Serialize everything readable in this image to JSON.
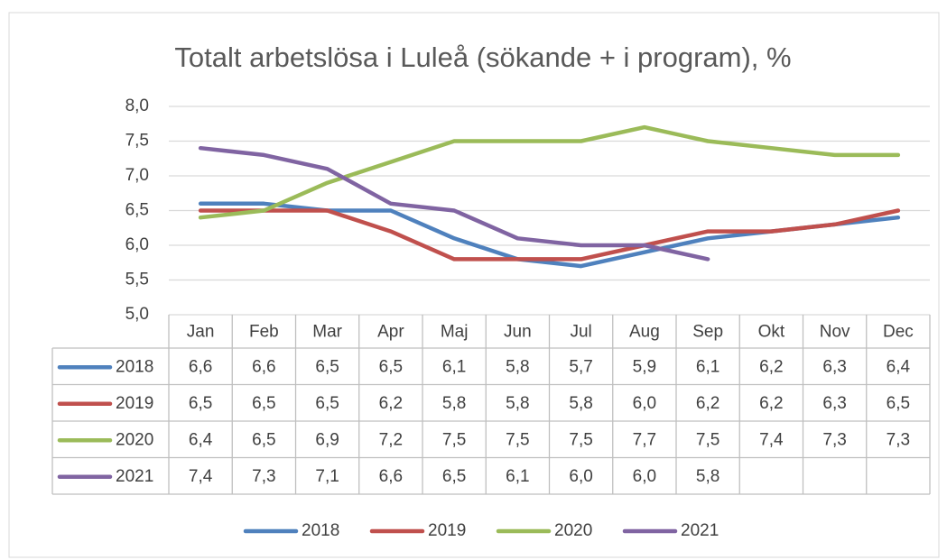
{
  "chart_data": {
    "type": "line",
    "title": "Totalt arbetslösa i Luleå (sökande + i program), %",
    "categories": [
      "Jan",
      "Feb",
      "Mar",
      "Apr",
      "Maj",
      "Jun",
      "Jul",
      "Aug",
      "Sep",
      "Okt",
      "Nov",
      "Dec"
    ],
    "series": [
      {
        "name": "2018",
        "color": "#4f81bd",
        "values": [
          6.6,
          6.6,
          6.5,
          6.5,
          6.1,
          5.8,
          5.7,
          5.9,
          6.1,
          6.2,
          6.3,
          6.4
        ],
        "value_labels": [
          "6,6",
          "6,6",
          "6,5",
          "6,5",
          "6,1",
          "5,8",
          "5,7",
          "5,9",
          "6,1",
          "6,2",
          "6,3",
          "6,4"
        ]
      },
      {
        "name": "2019",
        "color": "#c0504d",
        "values": [
          6.5,
          6.5,
          6.5,
          6.2,
          5.8,
          5.8,
          5.8,
          6.0,
          6.2,
          6.2,
          6.3,
          6.5
        ],
        "value_labels": [
          "6,5",
          "6,5",
          "6,5",
          "6,2",
          "5,8",
          "5,8",
          "5,8",
          "6,0",
          "6,2",
          "6,2",
          "6,3",
          "6,5"
        ]
      },
      {
        "name": "2020",
        "color": "#9bbb59",
        "values": [
          6.4,
          6.5,
          6.9,
          7.2,
          7.5,
          7.5,
          7.5,
          7.7,
          7.5,
          7.4,
          7.3,
          7.3
        ],
        "value_labels": [
          "6,4",
          "6,5",
          "6,9",
          "7,2",
          "7,5",
          "7,5",
          "7,5",
          "7,7",
          "7,5",
          "7,4",
          "7,3",
          "7,3"
        ]
      },
      {
        "name": "2021",
        "color": "#8064a2",
        "values": [
          7.4,
          7.3,
          7.1,
          6.6,
          6.5,
          6.1,
          6.0,
          6.0,
          5.8,
          null,
          null,
          null
        ],
        "value_labels": [
          "7,4",
          "7,3",
          "7,1",
          "6,6",
          "6,5",
          "6,1",
          "6,0",
          "6,0",
          "5,8",
          null,
          null,
          null
        ]
      }
    ],
    "ylim": [
      5,
      8
    ],
    "yticks": [
      {
        "value": 5,
        "label": "5,0"
      },
      {
        "value": 5.5,
        "label": "5,5"
      },
      {
        "value": 6,
        "label": "6,0"
      },
      {
        "value": 6.5,
        "label": "6,5"
      },
      {
        "value": 7,
        "label": "7,0"
      },
      {
        "value": 7.5,
        "label": "7,5"
      },
      {
        "value": 8,
        "label": "8,0"
      }
    ],
    "grid": true,
    "legend": "bottom",
    "data_table": true
  }
}
